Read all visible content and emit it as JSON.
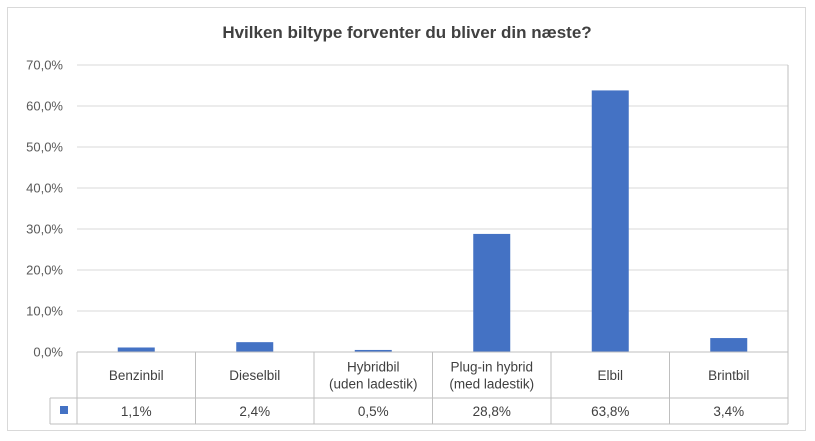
{
  "chart_data": {
    "type": "bar",
    "title": "Hvilken biltype forventer du bliver din næste?",
    "categories": [
      [
        "Benzinbil"
      ],
      [
        "Dieselbil"
      ],
      [
        "Hybridbil",
        "(uden ladestik)"
      ],
      [
        "Plug-in hybrid",
        "(med ladestik)"
      ],
      [
        "Elbil"
      ],
      [
        "Brintbil"
      ]
    ],
    "series": [
      {
        "values": [
          1.1,
          2.4,
          0.5,
          28.8,
          63.8,
          3.4
        ],
        "labels": [
          "1,1%",
          "2,4%",
          "0,5%",
          "28,8%",
          "63,8%",
          "3,4%"
        ],
        "color": "#4472c4"
      }
    ],
    "ylim": [
      0,
      70
    ],
    "yticks": [
      "0,0%",
      "10,0%",
      "20,0%",
      "30,0%",
      "40,0%",
      "50,0%",
      "60,0%",
      "70,0%"
    ],
    "grid": true,
    "legend": "data-table"
  }
}
